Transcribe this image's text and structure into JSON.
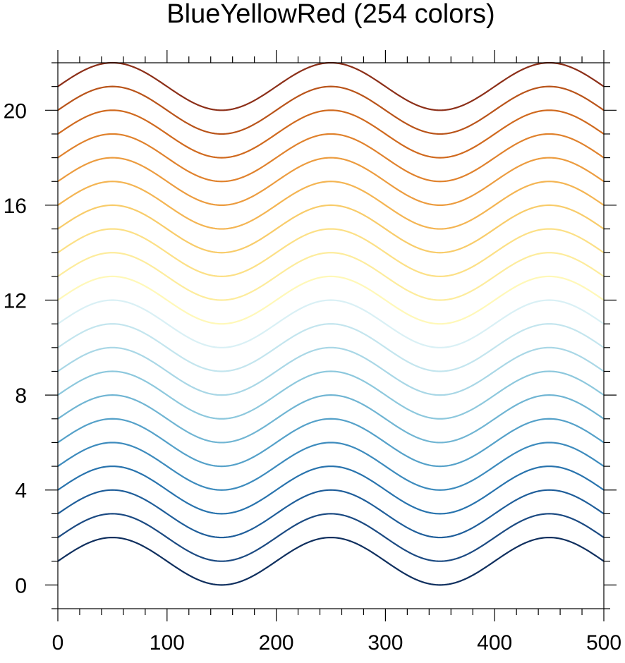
{
  "chart_data": {
    "type": "line",
    "title": "BlueYellowRed (254 colors)",
    "xlabel": "",
    "ylabel": "",
    "xlim": [
      0,
      500
    ],
    "ylim": [
      -1,
      22
    ],
    "x_major_ticks": [
      0,
      100,
      200,
      300,
      400,
      500
    ],
    "x_tick_labels": [
      "0",
      "100",
      "200",
      "300",
      "400",
      "500"
    ],
    "y_major_ticks": [
      0,
      4,
      8,
      12,
      16,
      20
    ],
    "y_tick_labels": [
      "0",
      "4",
      "8",
      "12",
      "16",
      "20"
    ],
    "grid": false,
    "legend": "none",
    "x": [
      0,
      10,
      20,
      30,
      40,
      50,
      60,
      70,
      80,
      90,
      100,
      110,
      120,
      130,
      140,
      150,
      160,
      170,
      180,
      190,
      200,
      210,
      220,
      230,
      240,
      250,
      260,
      270,
      280,
      290,
      300,
      310,
      320,
      330,
      340,
      350,
      360,
      370,
      380,
      390,
      400,
      410,
      420,
      430,
      440,
      450,
      460,
      470,
      480,
      490,
      500
    ],
    "wave": {
      "form": "offset + sin(2*pi*x/200)",
      "amplitude": 1,
      "period": 200
    },
    "series": [
      {
        "offset": 1,
        "color": "#0f2f5e"
      },
      {
        "offset": 2,
        "color": "#1b4a82"
      },
      {
        "offset": 3,
        "color": "#1f5e9a"
      },
      {
        "offset": 4,
        "color": "#2873ad"
      },
      {
        "offset": 5,
        "color": "#3d8bbd"
      },
      {
        "offset": 6,
        "color": "#55a1c9"
      },
      {
        "offset": 7,
        "color": "#70b5d3"
      },
      {
        "offset": 8,
        "color": "#8dc8dd"
      },
      {
        "offset": 9,
        "color": "#a9d7e6"
      },
      {
        "offset": 10,
        "color": "#c3e5ee"
      },
      {
        "offset": 11,
        "color": "#d9f0f5"
      },
      {
        "offset": 12,
        "color": "#fff8b8"
      },
      {
        "offset": 13,
        "color": "#fdec9c"
      },
      {
        "offset": 14,
        "color": "#fce086"
      },
      {
        "offset": 15,
        "color": "#f8cc6a"
      },
      {
        "offset": 16,
        "color": "#f4b553"
      },
      {
        "offset": 17,
        "color": "#ec9c3f"
      },
      {
        "offset": 18,
        "color": "#e0822d"
      },
      {
        "offset": 19,
        "color": "#d06a1f"
      },
      {
        "offset": 20,
        "color": "#b9541a"
      },
      {
        "offset": 21,
        "color": "#8c2f18"
      }
    ]
  }
}
